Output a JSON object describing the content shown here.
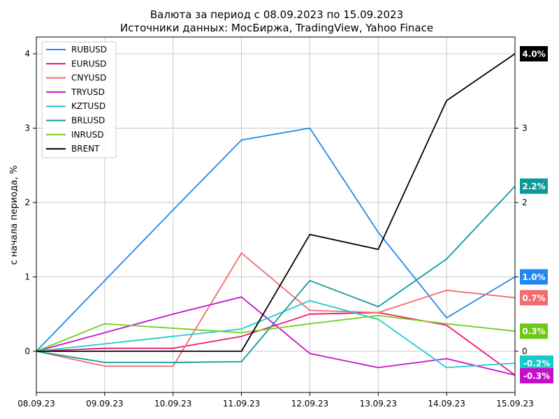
{
  "chart_data": {
    "type": "line",
    "title": "Валюта за период с 08.09.2023 по 15.09.2023",
    "subtitle": "Источники данных: МосБиржа, TradingView, Yahoo Finace",
    "xlabel": "",
    "ylabel": "с начала периода, %",
    "x": [
      "08.09.23",
      "09.09.23",
      "10.09.23",
      "11.09.23",
      "12.09.23",
      "13.09.23",
      "14.09.23",
      "15.09.23"
    ],
    "ylim": [
      -0.55,
      4.2
    ],
    "yticks_left": [
      "0",
      "1",
      "2",
      "3",
      "4"
    ],
    "yticks_right": [
      "0",
      "1",
      "2",
      "3"
    ],
    "grid": true,
    "legend_position": "top-left",
    "series": [
      {
        "name": "RUBUSD",
        "color": "#1f88f0",
        "values": [
          0,
          0.95,
          1.9,
          2.84,
          3.0,
          1.6,
          0.45,
          1.0
        ],
        "end_label": "1.0%",
        "badge_color": "#1f88f0"
      },
      {
        "name": "EURUSD",
        "color": "#ee1577",
        "values": [
          0,
          0.04,
          0.04,
          0.2,
          0.5,
          0.52,
          0.35,
          -0.32
        ],
        "end_label": "",
        "badge_color": "#ee1577"
      },
      {
        "name": "CNYUSD",
        "color": "#f36c6c",
        "values": [
          0,
          -0.2,
          -0.2,
          1.32,
          0.55,
          0.52,
          0.82,
          0.72
        ],
        "end_label": "0.7%",
        "badge_color": "#f36c6c"
      },
      {
        "name": "TRYUSD",
        "color": "#c413c9",
        "values": [
          0,
          0.25,
          0.5,
          0.73,
          -0.03,
          -0.22,
          -0.1,
          -0.32
        ],
        "end_label": "-0.3%",
        "badge_color": "#c411c9"
      },
      {
        "name": "KZTUSD",
        "color": "#1ecccc",
        "values": [
          0,
          0.1,
          0.2,
          0.3,
          0.68,
          0.43,
          -0.22,
          -0.16
        ],
        "end_label": "-0.2%",
        "badge_color": "#17c9c9"
      },
      {
        "name": "BRLUSD",
        "color": "#129a9a",
        "values": [
          0,
          -0.15,
          -0.15,
          -0.14,
          0.95,
          0.6,
          1.24,
          2.22
        ],
        "end_label": "2.2%",
        "badge_color": "#0e9999"
      },
      {
        "name": "INRUSD",
        "color": "#74cc1a",
        "values": [
          0,
          0.37,
          0.31,
          0.25,
          0.37,
          0.48,
          0.37,
          0.27
        ],
        "end_label": "0.3%",
        "badge_color": "#6cc814"
      },
      {
        "name": "BRENT",
        "color": "#000000",
        "values": [
          0,
          0,
          0,
          0,
          1.57,
          1.37,
          3.37,
          4.0
        ],
        "end_label": "4.0%",
        "badge_color": "#000000"
      }
    ]
  }
}
